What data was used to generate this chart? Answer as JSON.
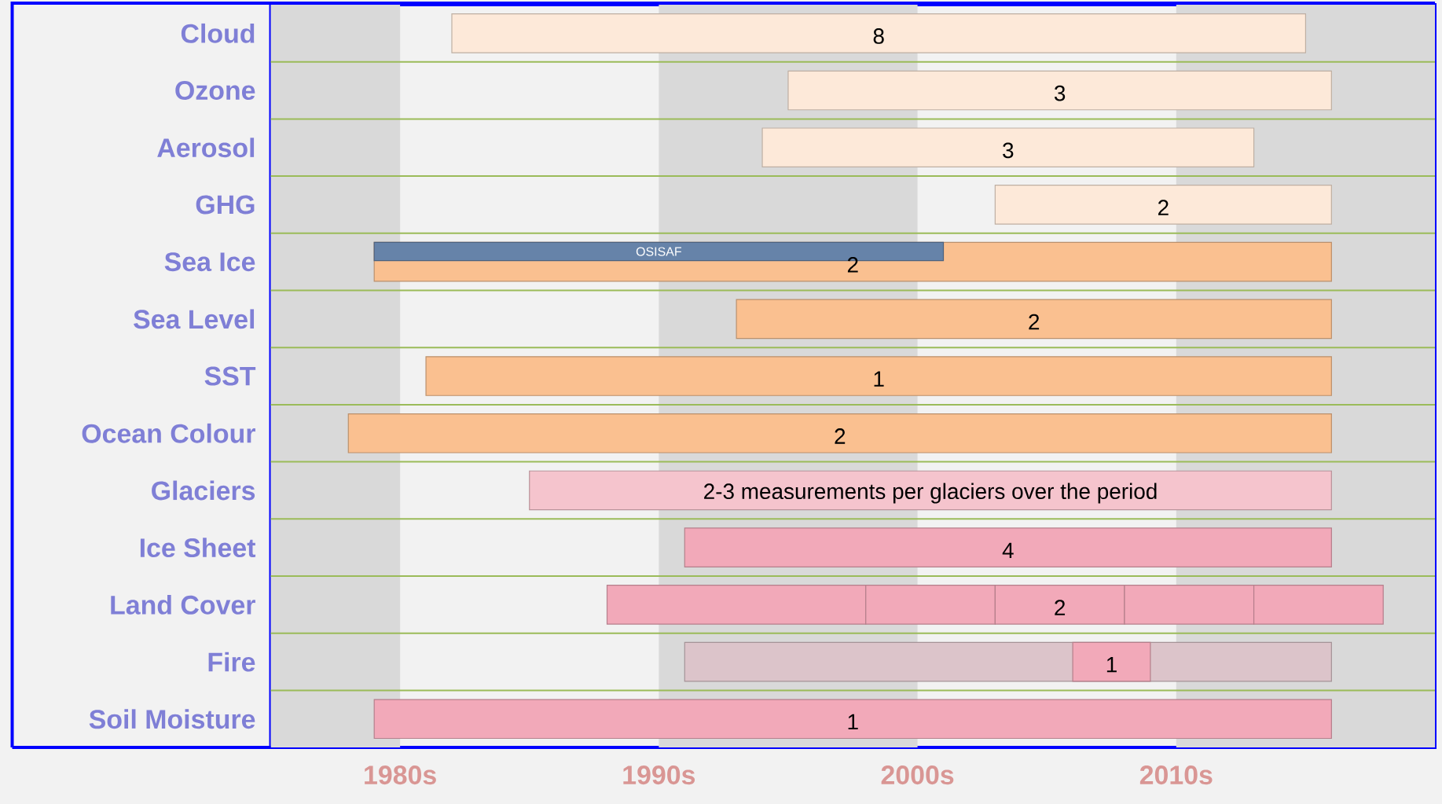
{
  "chart_data": {
    "type": "bar",
    "orientation": "horizontal",
    "categories": [
      "Cloud",
      "Ozone",
      "Aerosol",
      "GHG",
      "Sea Ice",
      "Sea Level",
      "SST",
      "Ocean Colour",
      "Glaciers",
      "Ice Sheet",
      "Land Cover",
      "Fire",
      "Soil Moisture"
    ],
    "series": [
      {
        "base": [
          1982,
          1995,
          1994,
          2003,
          1979,
          1993,
          1981,
          1978,
          1985,
          1991,
          1988,
          1991,
          1979
        ],
        "values": [
          33,
          21,
          19,
          13,
          37,
          23,
          35,
          38,
          31,
          25,
          10,
          25,
          37
        ],
        "colors": [
          "#fde9d9",
          "#fde9d9",
          "#fde9d9",
          "#fde9d9",
          "#fac090",
          "#fac090",
          "#fac090",
          "#fac090",
          "#f5c4cd",
          "#f2a9b9",
          "#f2a9b9",
          "#dcc4ca",
          "#f2a9b9"
        ]
      },
      {
        "name": "OSISAF",
        "color": "#6683a9",
        "base": [
          null,
          null,
          null,
          null,
          1979,
          null,
          null,
          null,
          null,
          null,
          null,
          null,
          null
        ],
        "values": [
          null,
          null,
          null,
          null,
          22,
          null,
          null,
          null,
          null,
          null,
          null,
          null,
          null
        ]
      },
      {
        "color": "#f2a9b9",
        "base": [
          null,
          null,
          null,
          null,
          null,
          null,
          null,
          null,
          null,
          null,
          1998,
          2006,
          null
        ],
        "values": [
          null,
          null,
          null,
          null,
          null,
          null,
          null,
          null,
          null,
          null,
          5,
          3,
          null
        ]
      },
      {
        "color": "#f2a9b9",
        "base": [
          null,
          null,
          null,
          null,
          null,
          null,
          null,
          null,
          null,
          null,
          2003,
          null,
          null
        ],
        "values": [
          null,
          null,
          null,
          null,
          null,
          null,
          null,
          null,
          null,
          null,
          5,
          null,
          null
        ]
      },
      {
        "color": "#f2a9b9",
        "base": [
          null,
          null,
          null,
          null,
          null,
          null,
          null,
          null,
          null,
          null,
          2008,
          null,
          null
        ],
        "values": [
          null,
          null,
          null,
          null,
          null,
          null,
          null,
          null,
          null,
          null,
          5,
          null,
          null
        ]
      },
      {
        "color": "#f2a9b9",
        "base": [
          null,
          null,
          null,
          null,
          null,
          null,
          null,
          null,
          null,
          null,
          2013,
          null,
          null
        ],
        "values": [
          null,
          null,
          null,
          null,
          null,
          null,
          null,
          null,
          null,
          null,
          5,
          null,
          null
        ]
      }
    ],
    "xlim": [
      1975,
      2020
    ],
    "xticks": [
      {
        "value": 1980,
        "label": "1980s"
      },
      {
        "value": 1990,
        "label": "1990s"
      },
      {
        "value": 2000,
        "label": "2000s"
      },
      {
        "value": 2010,
        "label": "2010s"
      }
    ],
    "bands": [
      {
        "axis": "x",
        "from": 1975,
        "to": 1980,
        "color": "#d9d9d9"
      },
      {
        "axis": "x",
        "from": 1990,
        "to": 2000,
        "color": "#d9d9d9"
      },
      {
        "axis": "x",
        "from": 2010,
        "to": 2020,
        "color": "#d9d9d9"
      }
    ],
    "annotations": [
      "8",
      "3",
      "3",
      "2",
      "2",
      "2",
      "1",
      "2",
      "2-3 measurements per glaciers over the period",
      "4",
      "2",
      "1",
      "1"
    ],
    "grid": false
  }
}
